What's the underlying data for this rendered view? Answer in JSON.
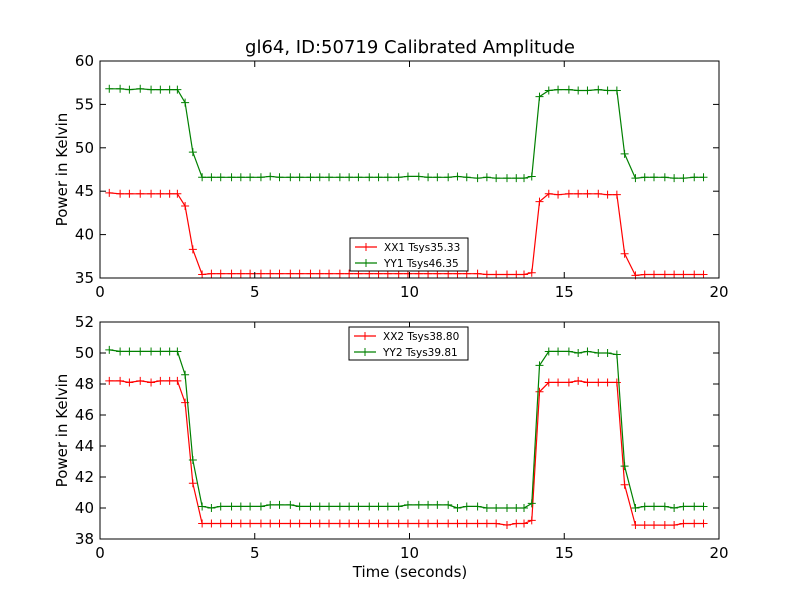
{
  "figure": {
    "title": "gl64, ID:50719 Calibrated Amplitude",
    "xlabel": "Time (seconds)"
  },
  "chart_data": [
    {
      "type": "line",
      "title": "gl64, ID:50719 Calibrated Amplitude",
      "xlabel": "",
      "ylabel": "Power in Kelvin",
      "xlim": [
        0,
        20
      ],
      "ylim": [
        35,
        60
      ],
      "xticks": [
        0,
        5,
        10,
        15,
        20
      ],
      "yticks": [
        35,
        40,
        45,
        50,
        55,
        60
      ],
      "grid": false,
      "legend_position": "bottom-center",
      "x": [
        0.3,
        0.65,
        0.95,
        1.3,
        1.65,
        1.95,
        2.25,
        2.5,
        2.75,
        3.0,
        3.3,
        3.6,
        3.9,
        4.25,
        4.55,
        4.85,
        5.2,
        5.5,
        5.8,
        6.15,
        6.45,
        6.8,
        7.1,
        7.4,
        7.75,
        8.05,
        8.35,
        8.7,
        9.0,
        9.3,
        9.65,
        9.95,
        10.3,
        10.6,
        10.9,
        11.25,
        11.55,
        11.85,
        12.2,
        12.5,
        12.8,
        13.15,
        13.45,
        13.7,
        13.95,
        14.2,
        14.5,
        14.8,
        15.15,
        15.45,
        15.75,
        16.1,
        16.4,
        16.7,
        16.95,
        17.3,
        17.6,
        17.9,
        18.25,
        18.55,
        18.85,
        19.2,
        19.5
      ],
      "series": [
        {
          "name": "XX1 Tsys35.33",
          "color": "#ff0000",
          "values": [
            44.8,
            44.7,
            44.7,
            44.7,
            44.7,
            44.7,
            44.7,
            44.7,
            43.3,
            38.3,
            35.4,
            35.5,
            35.5,
            35.5,
            35.5,
            35.5,
            35.5,
            35.5,
            35.5,
            35.5,
            35.5,
            35.5,
            35.5,
            35.5,
            35.5,
            35.5,
            35.5,
            35.5,
            35.5,
            35.5,
            35.5,
            35.5,
            35.5,
            35.5,
            35.5,
            35.5,
            35.5,
            35.5,
            35.5,
            35.4,
            35.4,
            35.4,
            35.4,
            35.4,
            35.6,
            43.8,
            44.7,
            44.6,
            44.7,
            44.7,
            44.7,
            44.7,
            44.6,
            44.6,
            37.8,
            35.3,
            35.4,
            35.4,
            35.4,
            35.4,
            35.4,
            35.4,
            35.4
          ]
        },
        {
          "name": "YY1 Tsys46.35",
          "color": "#008000",
          "values": [
            56.8,
            56.8,
            56.7,
            56.8,
            56.7,
            56.7,
            56.7,
            56.7,
            55.2,
            49.5,
            46.6,
            46.6,
            46.6,
            46.6,
            46.6,
            46.6,
            46.6,
            46.7,
            46.6,
            46.6,
            46.6,
            46.6,
            46.6,
            46.6,
            46.6,
            46.6,
            46.6,
            46.6,
            46.6,
            46.6,
            46.6,
            46.7,
            46.7,
            46.6,
            46.6,
            46.6,
            46.7,
            46.6,
            46.5,
            46.6,
            46.5,
            46.5,
            46.5,
            46.5,
            46.7,
            55.9,
            56.6,
            56.7,
            56.7,
            56.6,
            56.6,
            56.7,
            56.6,
            56.6,
            49.3,
            46.5,
            46.6,
            46.6,
            46.6,
            46.5,
            46.5,
            46.6,
            46.6
          ]
        }
      ]
    },
    {
      "type": "line",
      "title": "",
      "xlabel": "Time (seconds)",
      "ylabel": "Power in Kelvin",
      "xlim": [
        0,
        20
      ],
      "ylim": [
        38,
        52
      ],
      "xticks": [
        0,
        5,
        10,
        15,
        20
      ],
      "yticks": [
        38,
        40,
        42,
        44,
        46,
        48,
        50,
        52
      ],
      "grid": false,
      "legend_position": "top-center",
      "x": [
        0.3,
        0.65,
        0.95,
        1.3,
        1.65,
        1.95,
        2.25,
        2.5,
        2.75,
        3.0,
        3.3,
        3.6,
        3.9,
        4.25,
        4.55,
        4.85,
        5.2,
        5.5,
        5.8,
        6.15,
        6.45,
        6.8,
        7.1,
        7.4,
        7.75,
        8.05,
        8.35,
        8.7,
        9.0,
        9.3,
        9.65,
        9.95,
        10.3,
        10.6,
        10.9,
        11.25,
        11.55,
        11.85,
        12.2,
        12.5,
        12.8,
        13.15,
        13.45,
        13.7,
        13.95,
        14.2,
        14.5,
        14.8,
        15.15,
        15.45,
        15.75,
        16.1,
        16.4,
        16.7,
        16.95,
        17.3,
        17.6,
        17.9,
        18.25,
        18.55,
        18.85,
        19.2,
        19.5
      ],
      "series": [
        {
          "name": "XX2 Tsys38.80",
          "color": "#ff0000",
          "values": [
            48.2,
            48.2,
            48.1,
            48.2,
            48.1,
            48.2,
            48.2,
            48.2,
            46.8,
            41.6,
            39.0,
            39.0,
            39.0,
            39.0,
            39.0,
            39.0,
            39.0,
            39.0,
            39.0,
            39.0,
            39.0,
            39.0,
            39.0,
            39.0,
            39.0,
            39.0,
            39.0,
            39.0,
            39.0,
            39.0,
            39.0,
            39.0,
            39.0,
            39.0,
            39.0,
            39.0,
            39.0,
            39.0,
            39.0,
            39.0,
            39.0,
            38.9,
            39.0,
            39.0,
            39.2,
            47.5,
            48.1,
            48.1,
            48.1,
            48.2,
            48.1,
            48.1,
            48.1,
            48.1,
            41.5,
            38.9,
            38.9,
            38.9,
            38.9,
            38.9,
            39.0,
            39.0,
            39.0
          ]
        },
        {
          "name": "YY2 Tsys39.81",
          "color": "#008000",
          "values": [
            50.2,
            50.1,
            50.1,
            50.1,
            50.1,
            50.1,
            50.1,
            50.1,
            48.6,
            43.1,
            40.1,
            40.0,
            40.1,
            40.1,
            40.1,
            40.1,
            40.1,
            40.2,
            40.2,
            40.2,
            40.1,
            40.1,
            40.1,
            40.1,
            40.1,
            40.1,
            40.1,
            40.1,
            40.1,
            40.1,
            40.1,
            40.2,
            40.2,
            40.2,
            40.2,
            40.2,
            40.0,
            40.1,
            40.1,
            40.0,
            40.0,
            40.0,
            40.0,
            40.0,
            40.3,
            49.2,
            50.1,
            50.1,
            50.1,
            50.0,
            50.1,
            50.0,
            50.0,
            49.9,
            42.7,
            40.0,
            40.1,
            40.1,
            40.1,
            40.0,
            40.1,
            40.1,
            40.1
          ]
        }
      ]
    }
  ]
}
